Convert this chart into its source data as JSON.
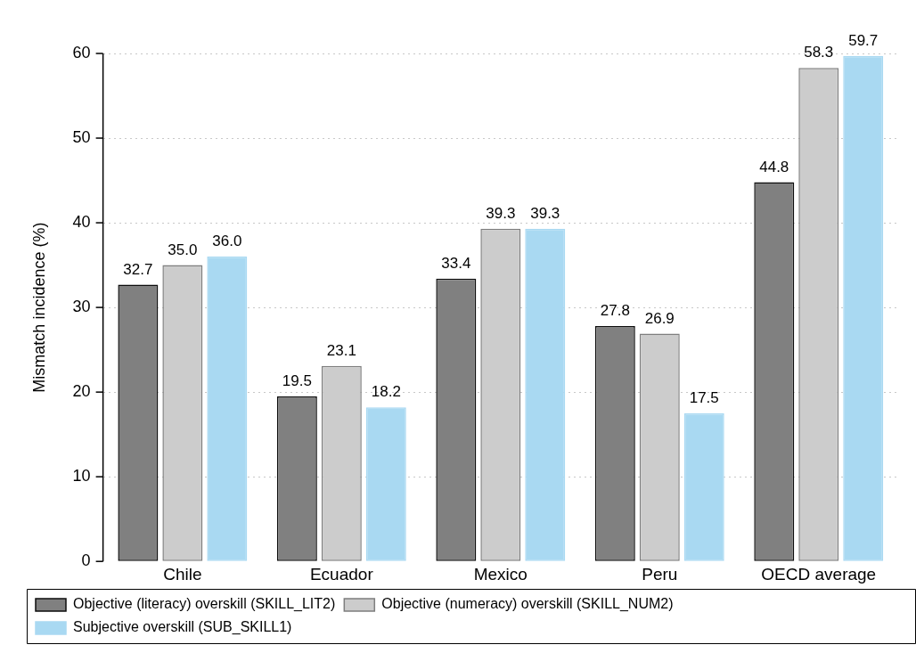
{
  "chart_data": {
    "type": "bar",
    "ylabel": "Mismatch incidence (%)",
    "categories": [
      "Chile",
      "Ecuador",
      "Mexico",
      "Peru",
      "OECD average"
    ],
    "series": [
      {
        "name": "Objective (literacy) overskill (SKILL_LIT2)",
        "color": "#808080",
        "values": [
          32.7,
          19.5,
          33.4,
          27.8,
          44.8
        ],
        "value_labels": [
          "32.7",
          "19.5",
          "33.4",
          "27.8",
          "44.8"
        ]
      },
      {
        "name": "Objective (numeracy) overskill (SKILL_NUM2)",
        "color": "#cccccc",
        "values": [
          35.0,
          23.1,
          39.3,
          26.9,
          58.3
        ],
        "value_labels": [
          "35.0",
          "23.1",
          "39.3",
          "26.9",
          "58.3"
        ]
      },
      {
        "name": "Subjective overskill (SUB_SKILL1)",
        "color": "#a9d9f2",
        "values": [
          36.0,
          18.2,
          39.3,
          17.5,
          59.7
        ],
        "value_labels": [
          "36.0",
          "18.2",
          "39.3",
          "17.5",
          "59.7"
        ]
      }
    ],
    "ylim": [
      0,
      60
    ],
    "yticks": [
      0,
      10,
      20,
      30,
      40,
      50,
      60
    ],
    "grid": "y",
    "legend": "bottom"
  }
}
